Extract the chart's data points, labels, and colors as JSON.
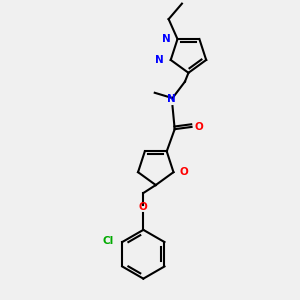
{
  "background_color": "#f0f0f0",
  "atom_colors": {
    "C": "#000000",
    "N": "#0000ff",
    "O": "#ff0000",
    "Cl": "#00aa00",
    "H": "#000000"
  },
  "figsize": [
    3.0,
    3.0
  ],
  "dpi": 100
}
